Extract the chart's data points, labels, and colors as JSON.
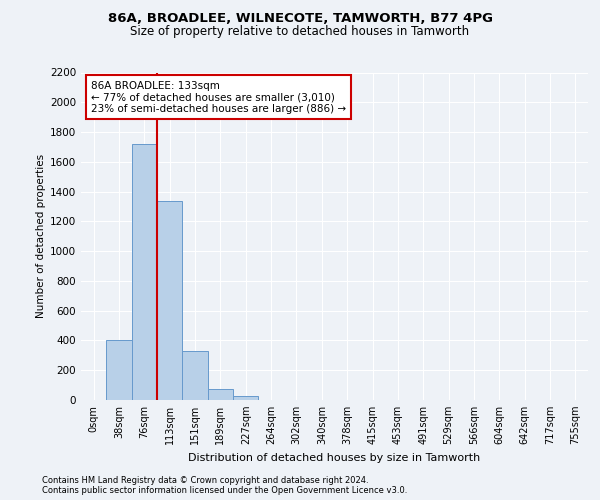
{
  "title1": "86A, BROADLEE, WILNECOTE, TAMWORTH, B77 4PG",
  "title2": "Size of property relative to detached houses in Tamworth",
  "xlabel": "Distribution of detached houses by size in Tamworth",
  "ylabel": "Number of detached properties",
  "bar_values": [
    0,
    400,
    1720,
    1340,
    330,
    75,
    25,
    0,
    0,
    0,
    0,
    0,
    0,
    0,
    0,
    0,
    0,
    0,
    0,
    0
  ],
  "bar_labels": [
    "0sqm",
    "38sqm",
    "76sqm",
    "113sqm",
    "151sqm",
    "189sqm",
    "227sqm",
    "264sqm",
    "302sqm",
    "340sqm",
    "378sqm",
    "415sqm",
    "453sqm",
    "491sqm",
    "529sqm",
    "566sqm",
    "604sqm",
    "642sqm",
    "717sqm",
    "755sqm"
  ],
  "bar_color": "#b8d0e8",
  "bar_edge_color": "#6699cc",
  "vline_x": 2.5,
  "vline_color": "#cc0000",
  "annotation_text": "86A BROADLEE: 133sqm\n← 77% of detached houses are smaller (3,010)\n23% of semi-detached houses are larger (886) →",
  "annotation_box_color": "#cc0000",
  "ylim": [
    0,
    2200
  ],
  "yticks": [
    0,
    200,
    400,
    600,
    800,
    1000,
    1200,
    1400,
    1600,
    1800,
    2000,
    2200
  ],
  "footnote1": "Contains HM Land Registry data © Crown copyright and database right 2024.",
  "footnote2": "Contains public sector information licensed under the Open Government Licence v3.0.",
  "bg_color": "#eef2f7",
  "plot_bg_color": "#eef2f7",
  "grid_color": "#ffffff",
  "num_bars": 20
}
